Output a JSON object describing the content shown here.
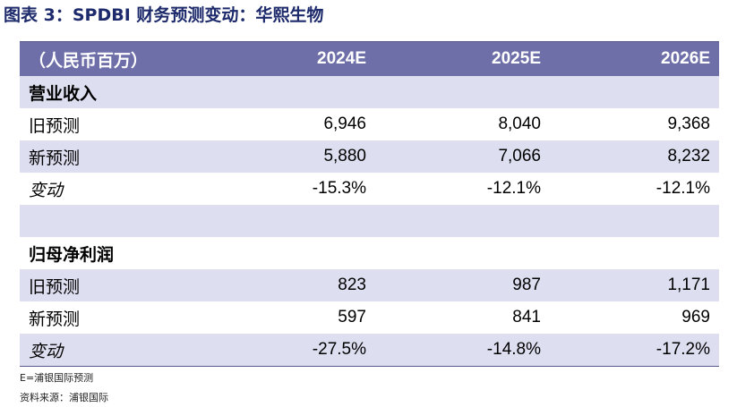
{
  "title": "图表 3：SPDBI 财务预测变动：华熙生物",
  "header": {
    "unit": "（人民币百万）",
    "years": [
      "2024E",
      "2025E",
      "2026E"
    ]
  },
  "revenue": {
    "section_label": "营业收入",
    "old": {
      "label": "旧预测",
      "values": [
        "6,946",
        "8,040",
        "9,368"
      ]
    },
    "new": {
      "label": "新预测",
      "values": [
        "5,880",
        "7,066",
        "8,232"
      ]
    },
    "change": {
      "label": "变动",
      "values": [
        "-15.3%",
        "-12.1%",
        "-12.1%"
      ]
    }
  },
  "profit": {
    "section_label": "归母净利润",
    "old": {
      "label": "旧预测",
      "values": [
        "823",
        "987",
        "1,171"
      ]
    },
    "new": {
      "label": "新预测",
      "values": [
        "597",
        "841",
        "969"
      ]
    },
    "change": {
      "label": "变动",
      "values": [
        "-27.5%",
        "-14.8%",
        "-17.2%"
      ]
    }
  },
  "footnote": "E=浦银国际预测",
  "source": "资料来源：浦银国际"
}
